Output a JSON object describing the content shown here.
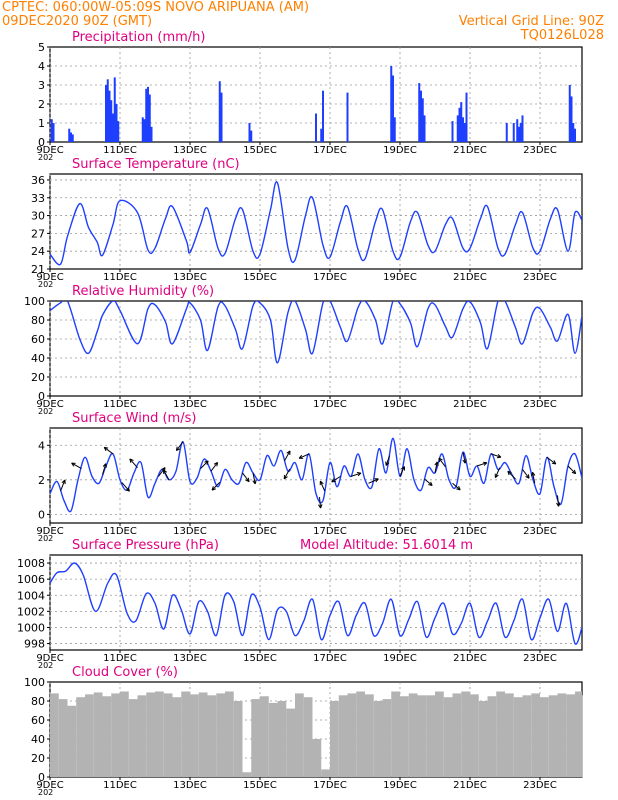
{
  "header": {
    "line1": "CPTEC:   060:00W-05:09S   NOVO ARIPUANA (AM)",
    "line2": "09DEC2020 90Z (GMT)",
    "grid_note": "Vertical Grid Line: 90Z",
    "code": "TQ0126L028",
    "color_header": "#ff8000",
    "color_title": "#e0007f",
    "color_series": "#1f3fff",
    "color_cloud": "#b3b3b3"
  },
  "x_axis": {
    "tick_labels": [
      "9DEC",
      "11DEC",
      "13DEC",
      "15DEC",
      "17DEC",
      "19DEC",
      "21DEC",
      "23DEC"
    ],
    "tick_days": [
      9,
      11,
      13,
      15,
      17,
      19,
      21,
      23
    ],
    "range_days": [
      9,
      24.2
    ],
    "year_stub": "202"
  },
  "chart_data": [
    {
      "type": "bar",
      "title": "Precipitation (mm/h)",
      "ylim": [
        0,
        5
      ],
      "yticks": [
        0,
        1,
        2,
        3,
        4,
        5
      ],
      "grid": true,
      "x_days": [
        9.05,
        9.1,
        9.55,
        9.6,
        9.65,
        10.6,
        10.65,
        10.7,
        10.75,
        10.8,
        10.85,
        10.9,
        10.95,
        11.65,
        11.7,
        11.75,
        11.8,
        11.85,
        11.9,
        13.85,
        13.9,
        14.7,
        14.75,
        16.6,
        16.75,
        16.8,
        17.5,
        18.75,
        18.8,
        18.85,
        19.55,
        19.6,
        19.65,
        19.7,
        20.5,
        20.65,
        20.7,
        20.75,
        20.8,
        20.85,
        20.9,
        22.05,
        22.25,
        22.35,
        22.4,
        22.45,
        22.5,
        23.85,
        23.9,
        23.95,
        24.0
      ],
      "values": [
        1.2,
        1.0,
        0.7,
        0.5,
        0.4,
        3.0,
        3.3,
        2.7,
        2.2,
        1.5,
        3.4,
        2.0,
        1.1,
        1.3,
        1.2,
        2.8,
        2.9,
        2.5,
        0.8,
        3.2,
        2.6,
        1.0,
        0.6,
        1.5,
        0.7,
        2.7,
        2.6,
        4.0,
        3.5,
        1.3,
        3.1,
        2.7,
        2.3,
        1.4,
        1.1,
        1.4,
        1.8,
        2.1,
        1.3,
        1.0,
        2.6,
        1.0,
        1.0,
        1.2,
        0.8,
        1.0,
        1.4,
        3.0,
        2.4,
        1.0,
        0.7
      ]
    },
    {
      "type": "line",
      "title": "Surface Temperature (nC)",
      "ylim": [
        21,
        37
      ],
      "yticks": [
        21,
        24,
        27,
        30,
        33,
        36
      ],
      "grid": true,
      "x_days": [
        9.0,
        9.3,
        9.5,
        9.85,
        10.1,
        10.35,
        10.5,
        10.8,
        11.0,
        11.5,
        11.8,
        12.0,
        12.3,
        12.5,
        12.9,
        13.0,
        13.3,
        13.5,
        13.8,
        14.0,
        14.3,
        14.5,
        14.8,
        15.0,
        15.3,
        15.5,
        15.8,
        16.0,
        16.3,
        16.5,
        16.8,
        17.0,
        17.3,
        17.5,
        17.8,
        18.0,
        18.3,
        18.5,
        18.8,
        19.0,
        19.3,
        19.5,
        19.8,
        20.0,
        20.3,
        20.5,
        20.8,
        21.0,
        21.3,
        21.5,
        21.8,
        22.0,
        22.3,
        22.5,
        22.8,
        23.0,
        23.3,
        23.5,
        23.8,
        24.0,
        24.2
      ],
      "values": [
        23.5,
        21.8,
        26.5,
        32.0,
        28.0,
        25.5,
        23.3,
        28.5,
        32.5,
        30.5,
        24.2,
        24.5,
        29.5,
        31.5,
        25.7,
        23.8,
        28.5,
        31.2,
        24.5,
        23.6,
        29.5,
        31.0,
        24.0,
        23.5,
        31.0,
        35.5,
        24.5,
        22.5,
        30.0,
        33.0,
        25.0,
        23.0,
        29.0,
        31.5,
        24.3,
        22.7,
        29.0,
        31.0,
        24.0,
        23.0,
        29.0,
        30.5,
        25.0,
        24.0,
        28.5,
        29.5,
        24.5,
        24.5,
        29.5,
        31.5,
        24.5,
        23.5,
        28.5,
        30.5,
        24.5,
        24.0,
        29.5,
        31.0,
        24.0,
        30.5,
        29.2
      ]
    },
    {
      "type": "line",
      "title": "Relative Humidity (%)",
      "ylim": [
        0,
        100
      ],
      "yticks": [
        0,
        20,
        40,
        60,
        80,
        100
      ],
      "grid": true,
      "x_days": [
        9.0,
        9.3,
        9.5,
        9.85,
        10.1,
        10.35,
        10.5,
        10.8,
        11.0,
        11.5,
        11.8,
        12.0,
        12.3,
        12.5,
        12.9,
        13.0,
        13.3,
        13.5,
        13.8,
        14.0,
        14.3,
        14.5,
        14.8,
        15.0,
        15.3,
        15.5,
        15.8,
        16.0,
        16.3,
        16.5,
        16.8,
        17.0,
        17.3,
        17.5,
        17.8,
        18.0,
        18.3,
        18.5,
        18.8,
        19.0,
        19.3,
        19.5,
        19.8,
        20.0,
        20.3,
        20.5,
        20.8,
        21.0,
        21.3,
        21.5,
        21.8,
        22.0,
        22.3,
        22.5,
        22.8,
        23.0,
        23.3,
        23.5,
        23.8,
        24.0,
        24.2
      ],
      "values": [
        90,
        98,
        100,
        60,
        45,
        68,
        85,
        100,
        90,
        55,
        92,
        96,
        78,
        55,
        92,
        98,
        80,
        48,
        94,
        95,
        70,
        50,
        95,
        98,
        80,
        35,
        88,
        100,
        70,
        45,
        98,
        100,
        72,
        58,
        93,
        100,
        80,
        55,
        100,
        97,
        77,
        52,
        92,
        96,
        73,
        62,
        92,
        99,
        77,
        50,
        100,
        100,
        72,
        55,
        88,
        92,
        72,
        58,
        86,
        45,
        84
      ]
    },
    {
      "type": "line",
      "title": "Surface Wind (m/s)",
      "ylim": [
        -0.5,
        5
      ],
      "yticks": [
        0,
        2,
        4
      ],
      "grid": true,
      "x_days": [
        9.0,
        9.2,
        9.4,
        9.6,
        9.8,
        10.0,
        10.2,
        10.4,
        10.6,
        10.8,
        11.0,
        11.2,
        11.4,
        11.6,
        11.8,
        12.0,
        12.2,
        12.4,
        12.6,
        12.8,
        13.0,
        13.2,
        13.4,
        13.6,
        13.8,
        14.0,
        14.2,
        14.4,
        14.6,
        14.8,
        15.0,
        15.2,
        15.4,
        15.6,
        15.8,
        16.0,
        16.2,
        16.4,
        16.6,
        16.8,
        17.0,
        17.2,
        17.4,
        17.6,
        17.8,
        18.0,
        18.2,
        18.4,
        18.6,
        18.8,
        19.0,
        19.2,
        19.4,
        19.6,
        19.8,
        20.0,
        20.2,
        20.4,
        20.6,
        20.8,
        21.0,
        21.2,
        21.4,
        21.6,
        21.8,
        22.0,
        22.2,
        22.4,
        22.6,
        22.8,
        23.0,
        23.2,
        23.4,
        23.6,
        23.8,
        24.0,
        24.2
      ],
      "values": [
        1.2,
        1.9,
        0.8,
        0.2,
        2.0,
        3.3,
        2.2,
        1.8,
        2.8,
        3.5,
        2.0,
        1.4,
        2.4,
        3.0,
        1.0,
        1.8,
        2.6,
        2.0,
        2.5,
        4.2,
        1.9,
        2.1,
        3.2,
        2.5,
        1.6,
        2.6,
        2.0,
        1.8,
        3.0,
        2.4,
        2.0,
        3.4,
        2.8,
        3.7,
        2.5,
        3.0,
        2.0,
        3.5,
        1.2,
        0.8,
        3.0,
        1.6,
        2.8,
        2.2,
        3.5,
        2.0,
        1.6,
        3.8,
        2.4,
        4.4,
        2.2,
        3.8,
        2.0,
        1.4,
        2.7,
        2.4,
        3.5,
        2.0,
        1.6,
        3.6,
        2.2,
        2.8,
        1.8,
        3.5,
        2.6,
        3.0,
        2.3,
        1.8,
        3.4,
        2.0,
        1.2,
        3.3,
        1.6,
        0.6,
        2.8,
        3.5,
        2.1
      ],
      "barbs": [
        {
          "day": 9.3,
          "dx": 0.4,
          "dy": -1.0
        },
        {
          "day": 9.9,
          "dx": -0.9,
          "dy": -0.5
        },
        {
          "day": 10.5,
          "dx": 0.3,
          "dy": -1.0
        },
        {
          "day": 10.8,
          "dx": -0.8,
          "dy": -0.6
        },
        {
          "day": 11.05,
          "dx": 0.7,
          "dy": 0.8
        },
        {
          "day": 11.5,
          "dx": -0.7,
          "dy": -0.8
        },
        {
          "day": 12.1,
          "dx": 0.6,
          "dy": -0.8
        },
        {
          "day": 12.4,
          "dx": -0.5,
          "dy": -0.9
        },
        {
          "day": 12.8,
          "dx": -0.6,
          "dy": 0.8
        },
        {
          "day": 13.3,
          "dx": 0.7,
          "dy": -0.7
        },
        {
          "day": 13.6,
          "dx": 0.6,
          "dy": -0.8
        },
        {
          "day": 13.85,
          "dx": -0.7,
          "dy": 0.7
        },
        {
          "day": 14.5,
          "dx": 0.6,
          "dy": 0.8
        },
        {
          "day": 14.8,
          "dx": 0.2,
          "dy": 1.0
        },
        {
          "day": 15.7,
          "dx": 0.5,
          "dy": -0.9
        },
        {
          "day": 15.85,
          "dx": -0.5,
          "dy": 0.9
        },
        {
          "day": 16.4,
          "dx": -0.9,
          "dy": 0.4
        },
        {
          "day": 16.7,
          "dx": 0.1,
          "dy": 1.0
        },
        {
          "day": 16.85,
          "dx": -0.4,
          "dy": -0.9
        },
        {
          "day": 17.3,
          "dx": -0.8,
          "dy": 0.5
        },
        {
          "day": 17.6,
          "dx": 0.9,
          "dy": -0.3
        },
        {
          "day": 18.1,
          "dx": 0.9,
          "dy": -0.4
        },
        {
          "day": 18.7,
          "dx": -0.3,
          "dy": 0.9
        },
        {
          "day": 19.0,
          "dx": 0.4,
          "dy": -0.9
        },
        {
          "day": 19.7,
          "dx": 0.7,
          "dy": 0.6
        },
        {
          "day": 20.0,
          "dx": 0.2,
          "dy": -1.0
        },
        {
          "day": 20.3,
          "dx": -0.6,
          "dy": -0.8
        },
        {
          "day": 20.5,
          "dx": 0.7,
          "dy": 0.6
        },
        {
          "day": 20.8,
          "dx": 0.2,
          "dy": 1.0
        },
        {
          "day": 21.2,
          "dx": 0.9,
          "dy": -0.3
        },
        {
          "day": 21.6,
          "dx": 0.9,
          "dy": 0.3
        },
        {
          "day": 21.85,
          "dx": -0.4,
          "dy": 0.9
        },
        {
          "day": 22.3,
          "dx": -0.7,
          "dy": -0.7
        },
        {
          "day": 22.5,
          "dx": 0.6,
          "dy": 0.8
        },
        {
          "day": 22.85,
          "dx": -0.2,
          "dy": -1.0
        },
        {
          "day": 23.2,
          "dx": 0.8,
          "dy": 0.6
        },
        {
          "day": 23.5,
          "dx": 0.1,
          "dy": 1.0
        },
        {
          "day": 23.8,
          "dx": 0.7,
          "dy": 0.7
        }
      ]
    },
    {
      "type": "line",
      "title": "Surface Pressure (hPa)",
      "annotation": "Model Altitude: 51.6014 m",
      "ylim": [
        997.2,
        1009
      ],
      "yticks": [
        998,
        1000,
        1002,
        1004,
        1006,
        1008
      ],
      "grid": true,
      "x_days": [
        9.0,
        9.2,
        9.45,
        9.7,
        9.95,
        10.3,
        10.65,
        10.9,
        11.2,
        11.45,
        11.75,
        12.0,
        12.25,
        12.5,
        12.75,
        13.0,
        13.25,
        13.5,
        13.75,
        14.0,
        14.25,
        14.5,
        14.75,
        15.0,
        15.25,
        15.5,
        15.75,
        16.0,
        16.25,
        16.5,
        16.75,
        17.0,
        17.25,
        17.5,
        17.75,
        18.0,
        18.25,
        18.5,
        18.75,
        19.0,
        19.25,
        19.5,
        19.75,
        20.0,
        20.25,
        20.5,
        20.75,
        21.0,
        21.25,
        21.5,
        21.75,
        22.0,
        22.25,
        22.5,
        22.75,
        23.0,
        23.25,
        23.5,
        23.75,
        24.0,
        24.2
      ],
      "values": [
        1005.5,
        1006.8,
        1007.0,
        1008.0,
        1006.5,
        1002.0,
        1005.5,
        1006.5,
        1001.8,
        1000.8,
        1004.2,
        1003.0,
        999.8,
        1004.0,
        1002.2,
        999.2,
        1003.2,
        1002.0,
        999.0,
        1004.0,
        1003.2,
        999.0,
        1004.0,
        1002.5,
        998.5,
        1002.2,
        1002.0,
        999.0,
        1000.8,
        1003.5,
        998.5,
        1001.5,
        1003.2,
        999.0,
        1001.5,
        1003.0,
        999.0,
        1000.5,
        1003.5,
        999.0,
        1001.0,
        1003.2,
        998.8,
        1001.2,
        1003.0,
        999.2,
        1000.5,
        1003.0,
        998.8,
        1000.8,
        1003.0,
        998.8,
        1000.8,
        1003.5,
        998.5,
        1001.2,
        1003.5,
        999.5,
        1003.0,
        998.0,
        1000.0
      ]
    },
    {
      "type": "bar",
      "title": "Cloud Cover (%)",
      "ylim": [
        0,
        100
      ],
      "yticks": [
        0,
        20,
        40,
        60,
        80,
        100
      ],
      "grid": true,
      "x_days": [
        9.0,
        9.25,
        9.5,
        9.75,
        10.0,
        10.25,
        10.5,
        10.75,
        11.0,
        11.25,
        11.5,
        11.75,
        12.0,
        12.25,
        12.5,
        12.75,
        13.0,
        13.25,
        13.5,
        13.75,
        14.0,
        14.25,
        14.5,
        14.75,
        15.0,
        15.25,
        15.5,
        15.75,
        16.0,
        16.25,
        16.5,
        16.75,
        17.0,
        17.25,
        17.5,
        17.75,
        18.0,
        18.25,
        18.5,
        18.75,
        19.0,
        19.25,
        19.5,
        19.75,
        20.0,
        20.25,
        20.5,
        20.75,
        21.0,
        21.25,
        21.5,
        21.75,
        22.0,
        22.25,
        22.5,
        22.75,
        23.0,
        23.25,
        23.5,
        23.75,
        24.0,
        24.2
      ],
      "values": [
        88,
        82,
        75,
        84,
        87,
        89,
        85,
        88,
        90,
        82,
        86,
        89,
        90,
        88,
        84,
        90,
        87,
        89,
        86,
        88,
        90,
        80,
        5,
        82,
        85,
        78,
        80,
        72,
        88,
        84,
        40,
        8,
        80,
        86,
        88,
        90,
        87,
        80,
        82,
        90,
        85,
        88,
        86,
        86,
        90,
        84,
        88,
        90,
        87,
        80,
        85,
        90,
        88,
        84,
        86,
        88,
        84,
        86,
        88,
        87,
        90,
        86
      ]
    }
  ]
}
